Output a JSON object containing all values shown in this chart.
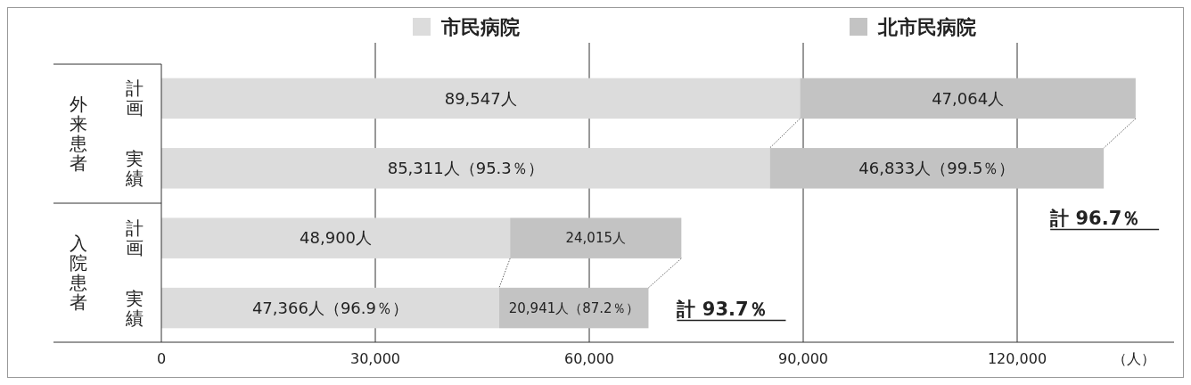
{
  "chart_data": {
    "type": "bar",
    "orientation": "horizontal",
    "stacked": true,
    "categories": [
      "計画",
      "実績",
      "計画",
      "実績"
    ],
    "series": [
      {
        "name": "市民病院",
        "color": "#dcdcdc",
        "values": [
          89547,
          85311,
          48900,
          47366
        ],
        "value_labels": [
          "89,547人",
          "85,311人（95.3％）",
          "48,900人",
          "47,366人（96.9％）"
        ]
      },
      {
        "name": "北市民病院",
        "color": "#c3c3c3",
        "values": [
          47064,
          46833,
          24015,
          20941
        ],
        "value_labels": [
          "47,064人",
          "46,833人（99.5％）",
          "24,015人",
          "20,941人（87.2％）"
        ]
      }
    ],
    "xlim": [
      0,
      142000
    ],
    "xticks": [
      {
        "value": 0,
        "label": "0"
      },
      {
        "value": 30000,
        "label": "30,000"
      },
      {
        "value": 60000,
        "label": "60,000"
      },
      {
        "value": 90000,
        "label": "90,000"
      },
      {
        "value": 120000,
        "label": "120,000"
      }
    ],
    "xlabel": "（人）",
    "grid": "x",
    "legend": "top",
    "annotations": [
      "外来患者",
      "入院患者",
      "計 96.7％",
      "計 93.7％"
    ]
  }
}
